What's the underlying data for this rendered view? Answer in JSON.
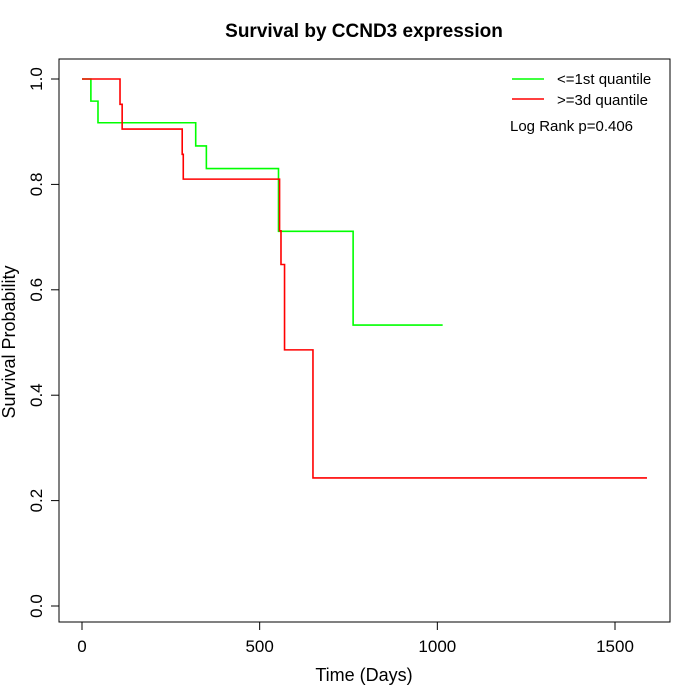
{
  "chart_data": {
    "type": "line",
    "title": "Survival by CCND3 expression",
    "xlabel": "Time (Days)",
    "ylabel": "Survival Probability",
    "xlim": [
      0,
      1600
    ],
    "ylim": [
      0,
      1
    ],
    "x_ticks": [
      0,
      500,
      1000,
      1500
    ],
    "x_tick_labels": [
      "0",
      "500",
      "1000",
      "1500"
    ],
    "y_ticks": [
      0,
      0.2,
      0.4,
      0.6,
      0.8,
      1.0
    ],
    "y_tick_labels": [
      "0.0",
      "0.2",
      "0.4",
      "0.6",
      "0.8",
      "1.0"
    ],
    "grid": false,
    "legend_position": "top-right",
    "annotation": "Log Rank p=0.406",
    "series": [
      {
        "name": "<=1st quantile",
        "color": "#00ff00",
        "step": true,
        "x": [
          0,
          25,
          45,
          320,
          350,
          553,
          763,
          1015
        ],
        "y": [
          1.0,
          0.958,
          0.917,
          0.873,
          0.83,
          0.711,
          0.533,
          0.533
        ]
      },
      {
        "name": ">=3d quantile",
        "color": "#ff0000",
        "step": true,
        "x": [
          0,
          107,
          113,
          282,
          285,
          556,
          560,
          570,
          650,
          1590
        ],
        "y": [
          1.0,
          0.952,
          0.905,
          0.857,
          0.81,
          0.712,
          0.648,
          0.486,
          0.243,
          0.243
        ]
      }
    ]
  }
}
